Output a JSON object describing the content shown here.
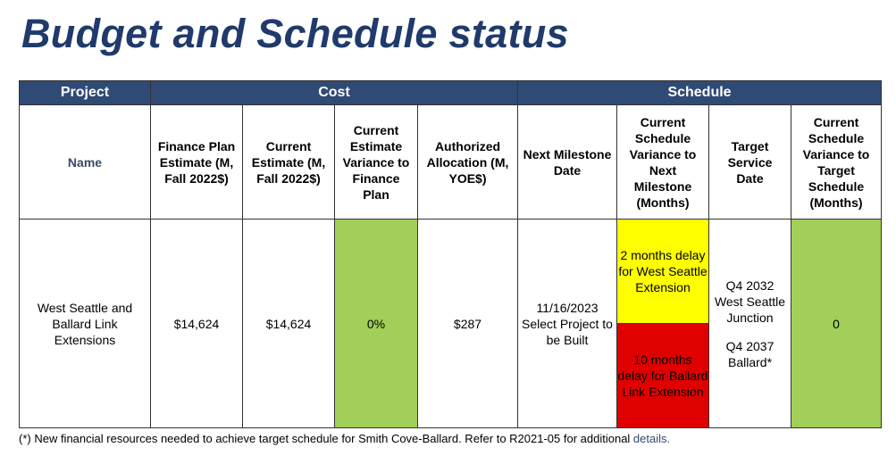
{
  "title": "Budget and Schedule status",
  "groups": {
    "project": "Project",
    "cost": "Cost",
    "schedule": "Schedule"
  },
  "columns": [
    "Name",
    "Finance Plan Estimate (M, Fall 2022$)",
    "Current Estimate (M, Fall 2022$)",
    "Current Estimate Variance to Finance Plan",
    "Authorized Allocation (M, YOE$)",
    "Next Milestone Date",
    "Current Schedule Variance to Next Milestone (Months)",
    "Target Service Date",
    "Current Schedule Variance to Target Schedule (Months)"
  ],
  "row": {
    "name": "West Seattle and Ballard Link Extensions",
    "finance_plan_estimate": "$14,624",
    "current_estimate": "$14,624",
    "variance_to_finance_plan": "0%",
    "authorized_allocation": "$287",
    "next_milestone": "11/16/2023 Select Project to be Built",
    "milestone_variance_ws": "2 months delay for West Seattle Extension",
    "milestone_variance_ballard": "10 months delay for Ballard Link Extension",
    "target_service_ws": "Q4 2032 West Seattle Junction",
    "target_service_ballard": "Q4 2037 Ballard*",
    "target_variance": "0"
  },
  "status_colors": {
    "green": "#a1cf5a",
    "yellow": "#ffff00",
    "red": "#e00000",
    "header": "#2f4a75"
  },
  "footnote": {
    "text": "(*) New financial resources needed to achieve target schedule for Smith Cove-Ballard. Refer to R2021-05 for additional ",
    "link": "details."
  }
}
